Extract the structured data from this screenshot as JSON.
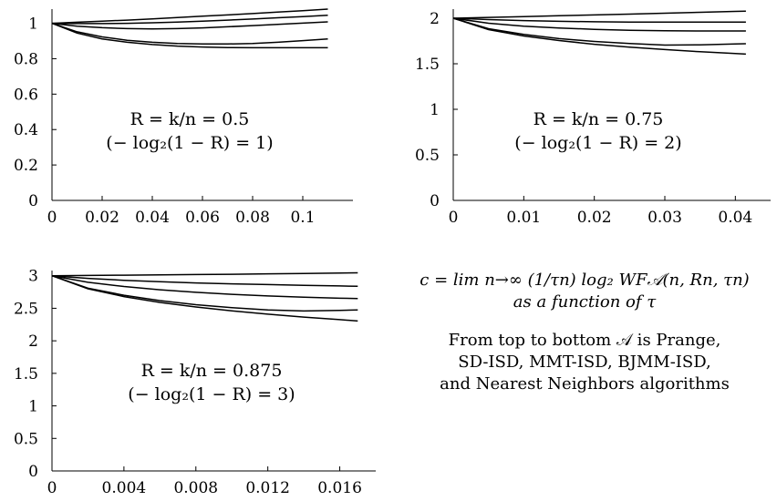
{
  "chart_data": [
    {
      "type": "line",
      "title": "",
      "xlabel": "",
      "ylabel": "",
      "xlim": [
        0,
        0.12
      ],
      "ylim": [
        0,
        1.08
      ],
      "x_ticks": [
        0,
        0.02,
        0.04,
        0.06,
        0.08,
        0.1
      ],
      "x_tick_labels": [
        "0",
        "0.02",
        "0.04",
        "0.06",
        "0.08",
        "0.1"
      ],
      "y_ticks": [
        0,
        0.2,
        0.4,
        0.6,
        0.8,
        1
      ],
      "y_tick_labels": [
        "0",
        "0.2",
        "0.4",
        "0.6",
        "0.8",
        "1"
      ],
      "annotation": [
        "R = k/n = 0.5",
        "(− log₂(1 − R) = 1)"
      ],
      "x": [
        0,
        0.01,
        0.02,
        0.03,
        0.04,
        0.05,
        0.06,
        0.07,
        0.08,
        0.09,
        0.1,
        0.11
      ],
      "series": [
        {
          "values": [
            1.0,
            1.006,
            1.012,
            1.018,
            1.025,
            1.032,
            1.04,
            1.047,
            1.055,
            1.063,
            1.071,
            1.08
          ]
        },
        {
          "values": [
            1.0,
            0.998,
            0.998,
            1.0,
            1.003,
            1.007,
            1.012,
            1.018,
            1.024,
            1.031,
            1.038,
            1.045
          ]
        },
        {
          "values": [
            1.0,
            0.984,
            0.975,
            0.97,
            0.968,
            0.97,
            0.974,
            0.98,
            0.987,
            0.994,
            1.001,
            1.008
          ]
        },
        {
          "values": [
            1.0,
            0.952,
            0.923,
            0.904,
            0.893,
            0.886,
            0.883,
            0.883,
            0.886,
            0.893,
            0.902,
            0.912
          ]
        },
        {
          "values": [
            1.0,
            0.945,
            0.912,
            0.893,
            0.88,
            0.871,
            0.866,
            0.863,
            0.862,
            0.862,
            0.862,
            0.862
          ]
        }
      ]
    },
    {
      "type": "line",
      "title": "",
      "xlabel": "",
      "ylabel": "",
      "xlim": [
        0,
        0.045
      ],
      "ylim": [
        0,
        2.1
      ],
      "x_ticks": [
        0,
        0.01,
        0.02,
        0.03,
        0.04
      ],
      "x_tick_labels": [
        "0",
        "0.01",
        "0.02",
        "0.03",
        "0.04"
      ],
      "y_ticks": [
        0,
        0.5,
        1,
        1.5,
        2
      ],
      "y_tick_labels": [
        "0",
        "0.5",
        "1",
        "1.5",
        "2"
      ],
      "annotation": [
        "R = k/n = 0.75",
        "(− log₂(1 − R) = 2)"
      ],
      "x": [
        0,
        0.005,
        0.01,
        0.015,
        0.02,
        0.025,
        0.03,
        0.035,
        0.04,
        0.0415
      ],
      "series": [
        {
          "values": [
            2.0,
            2.009,
            2.018,
            2.027,
            2.036,
            2.045,
            2.055,
            2.065,
            2.075,
            2.078
          ]
        },
        {
          "values": [
            2.0,
            1.985,
            1.974,
            1.966,
            1.961,
            1.958,
            1.957,
            1.957,
            1.958,
            1.958
          ]
        },
        {
          "values": [
            2.0,
            1.945,
            1.912,
            1.893,
            1.878,
            1.868,
            1.862,
            1.86,
            1.86,
            1.86
          ]
        },
        {
          "values": [
            2.0,
            1.885,
            1.822,
            1.776,
            1.745,
            1.722,
            1.705,
            1.708,
            1.718,
            1.72
          ]
        },
        {
          "values": [
            2.0,
            1.875,
            1.805,
            1.755,
            1.714,
            1.682,
            1.656,
            1.632,
            1.612,
            1.606
          ]
        }
      ]
    },
    {
      "type": "line",
      "title": "",
      "xlabel": "",
      "ylabel": "",
      "xlim": [
        0,
        0.018
      ],
      "ylim": [
        0,
        3.08
      ],
      "x_ticks": [
        0,
        0.004,
        0.008,
        0.012,
        0.016
      ],
      "x_tick_labels": [
        "0",
        "0.004",
        "0.008",
        "0.012",
        "0.016"
      ],
      "y_ticks": [
        0,
        0.5,
        1,
        1.5,
        2,
        2.5,
        3
      ],
      "y_tick_labels": [
        "0",
        "0.5",
        "1",
        "1.5",
        "2",
        "2.5",
        "3"
      ],
      "annotation": [
        "R = k/n = 0.875",
        "(− log₂(1 − R) = 3)"
      ],
      "x": [
        0,
        0.002,
        0.004,
        0.006,
        0.008,
        0.01,
        0.012,
        0.014,
        0.016,
        0.017
      ],
      "series": [
        {
          "values": [
            3.0,
            3.004,
            3.008,
            3.013,
            3.018,
            3.023,
            3.029,
            3.035,
            3.041,
            3.045
          ]
        },
        {
          "values": [
            3.0,
            2.96,
            2.93,
            2.908,
            2.89,
            2.876,
            2.864,
            2.853,
            2.843,
            2.838
          ]
        },
        {
          "values": [
            3.0,
            2.9,
            2.835,
            2.785,
            2.745,
            2.715,
            2.69,
            2.67,
            2.655,
            2.65
          ]
        },
        {
          "values": [
            3.0,
            2.81,
            2.7,
            2.618,
            2.555,
            2.51,
            2.475,
            2.458,
            2.468,
            2.475
          ]
        },
        {
          "values": [
            3.0,
            2.8,
            2.68,
            2.59,
            2.52,
            2.46,
            2.41,
            2.365,
            2.325,
            2.305
          ]
        }
      ]
    }
  ],
  "caption": {
    "formula": "c = lim n→∞ (1/τn) log₂ WF𝒜(n, Rn, τn)",
    "formula_note": "as a function of τ",
    "description_lines": [
      "From top to bottom 𝒜 is Prange,",
      "SD-ISD, MMT-ISD, BJMM-ISD,",
      "and Nearest Neighbors algorithms"
    ]
  }
}
